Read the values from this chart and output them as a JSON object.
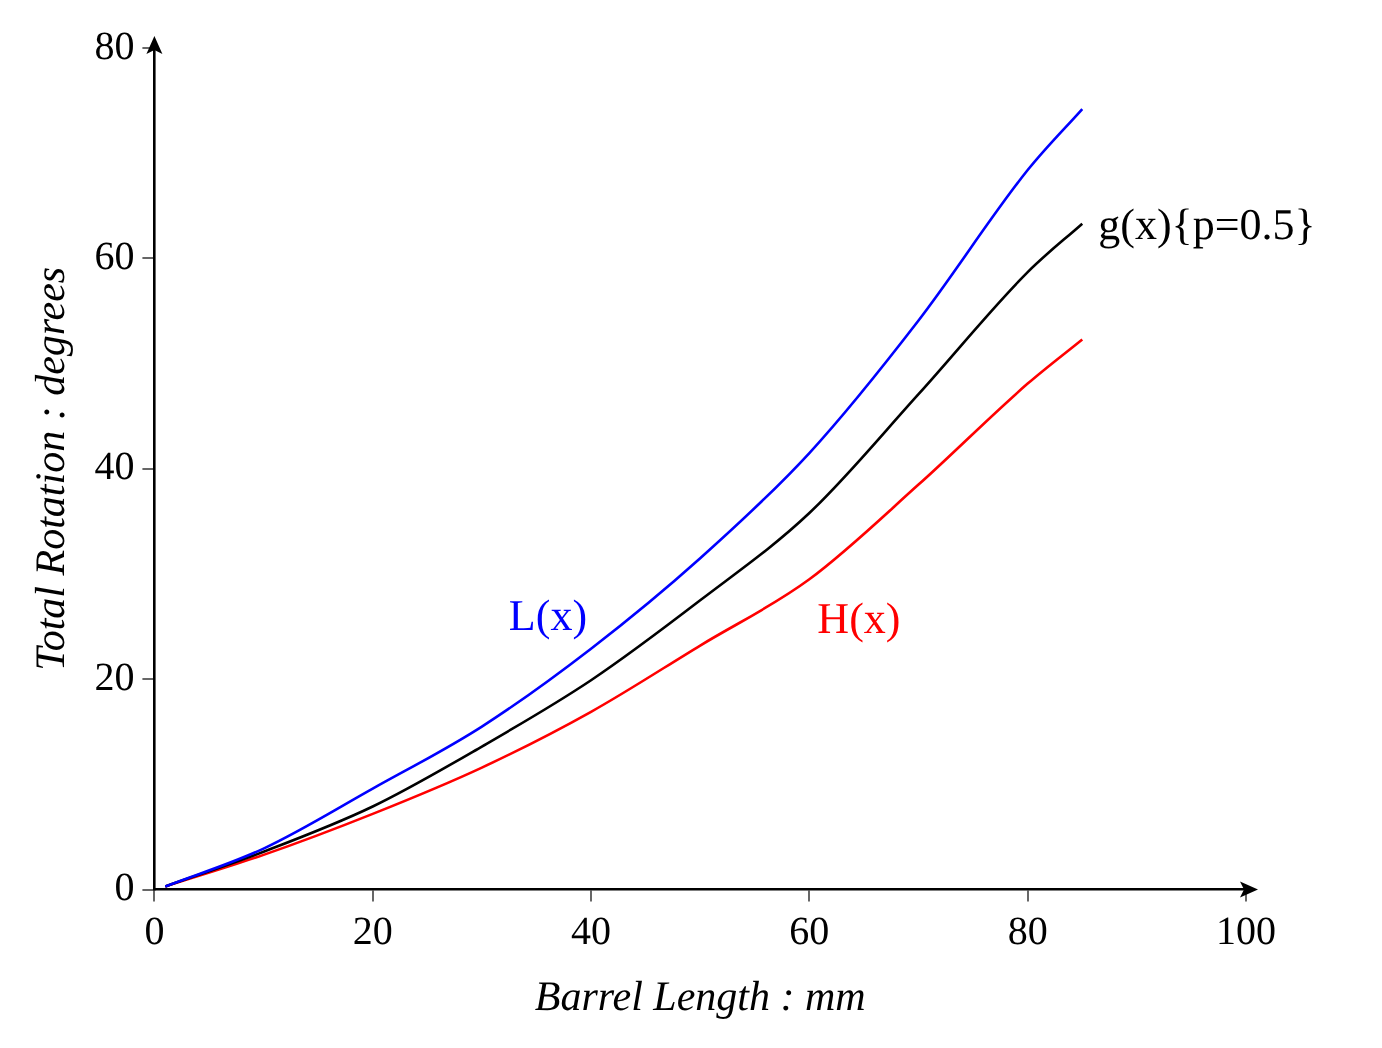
{
  "chart_data": {
    "type": "line",
    "xlabel": "Barrel Length : mm",
    "ylabel": "Total Rotation : degrees",
    "xlim": [
      0,
      100
    ],
    "ylim": [
      0,
      80
    ],
    "xticks": [
      0,
      20,
      40,
      60,
      80,
      100
    ],
    "yticks": [
      0,
      20,
      40,
      60,
      80
    ],
    "grid": false,
    "legend": false,
    "marker": "none",
    "line_style": "solid",
    "series": [
      {
        "name": "L(x)",
        "color": "#0000ff",
        "x": [
          1,
          10,
          20,
          30,
          40,
          50,
          60,
          70,
          80,
          85
        ],
        "values": [
          0.3,
          3.9,
          9.6,
          15.5,
          22.9,
          31.5,
          41.5,
          54.1,
          68.4,
          74.2
        ]
      },
      {
        "name": "g(x){p=0.5}",
        "color": "#000000",
        "x": [
          1,
          10,
          20,
          30,
          40,
          50,
          60,
          70,
          80,
          85
        ],
        "values": [
          0.3,
          3.6,
          7.9,
          13.6,
          19.9,
          27.5,
          35.8,
          47.1,
          58.7,
          63.3
        ]
      },
      {
        "name": "H(x)",
        "color": "#ff0000",
        "x": [
          1,
          10,
          20,
          30,
          40,
          50,
          60,
          70,
          80,
          85
        ],
        "values": [
          0.3,
          3.3,
          7.2,
          11.6,
          16.9,
          23.2,
          29.5,
          38.5,
          48.1,
          52.3
        ]
      }
    ]
  }
}
